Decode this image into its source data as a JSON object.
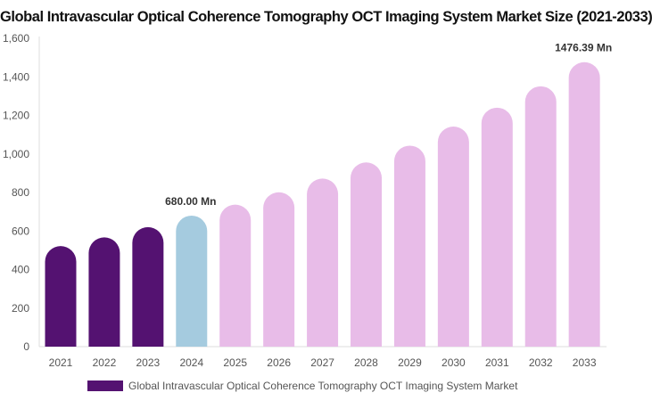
{
  "chart_data": {
    "type": "bar",
    "title": "Global Intravascular Optical Coherence Tomography OCT Imaging System Market Size (2021-2033)",
    "xlabel": "",
    "ylabel": "",
    "categories": [
      "2021",
      "2022",
      "2023",
      "2024",
      "2025",
      "2026",
      "2027",
      "2028",
      "2029",
      "2030",
      "2031",
      "2032",
      "2033"
    ],
    "series": [
      {
        "name": "Global Intravascular Optical Coherence Tomography OCT Imaging System Market",
        "values": [
          522,
          567,
          620,
          680,
          737,
          801,
          872,
          956,
          1043,
          1142,
          1240,
          1351,
          1476.39
        ]
      }
    ],
    "ylim": [
      0,
      1600
    ],
    "yticks": [
      "0",
      "200",
      "400",
      "600",
      "800",
      "1,000",
      "1,200",
      "1,400",
      "1,600"
    ],
    "data_labels": [
      {
        "category": "2024",
        "text": "680.00 Mn"
      },
      {
        "category": "2033",
        "text": "1476.39 Mn"
      }
    ],
    "bar_colors": [
      "#541271",
      "#541271",
      "#541271",
      "#a5cbdf",
      "#e8bce8",
      "#e8bce8",
      "#e8bce8",
      "#e8bce8",
      "#e8bce8",
      "#e8bce8",
      "#e8bce8",
      "#e8bce8",
      "#e8bce8"
    ],
    "legend_color": "#541271",
    "legend_position": "bottom",
    "grid": false
  }
}
